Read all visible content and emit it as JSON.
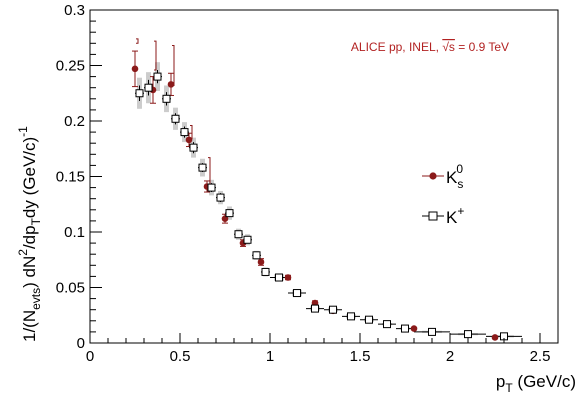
{
  "chart_data": {
    "type": "scatter",
    "annotation": {
      "prefix": "ALICE pp, INEL, ",
      "sqrt": "√s",
      "suffix": " = 0.9 TeV"
    },
    "xlabel": {
      "main": "p",
      "sub": "T",
      "rest": " (GeV/c)"
    },
    "ylabel": {
      "parts": [
        {
          "t": "1/(N",
          "s": "n"
        },
        {
          "t": "evts",
          "s": "sub"
        },
        {
          "t": ") dN",
          "s": "n"
        },
        {
          "t": "2",
          "s": "sup"
        },
        {
          "t": "/dp",
          "s": "n"
        },
        {
          "t": "T",
          "s": "sub"
        },
        {
          "t": "dy (GeV/c)",
          "s": "n"
        },
        {
          "t": "-1",
          "s": "sup"
        }
      ]
    },
    "xlim": [
      0,
      2.6
    ],
    "ylim": [
      0,
      0.3
    ],
    "x_ticks": [
      0,
      0.5,
      1,
      1.5,
      2,
      2.5
    ],
    "x_tick_labels": [
      "0",
      "0.5",
      "1",
      "1.5",
      "2",
      "2.5"
    ],
    "y_ticks": [
      0,
      0.05,
      0.1,
      0.15,
      0.2,
      0.25,
      0.3
    ],
    "y_tick_labels": [
      "0",
      "0.05",
      "0.1",
      "0.15",
      "0.2",
      "0.25",
      "0.3"
    ],
    "grid": false,
    "legend_position": "right",
    "series": [
      {
        "name": "K0s",
        "label_main": "K",
        "label_sub": "s",
        "label_sup": "0",
        "marker": "filled-circle",
        "color": "#8b1a1a",
        "x": [
          0.25,
          0.35,
          0.45,
          0.55,
          0.65,
          0.75,
          0.85,
          0.95,
          1.1,
          1.25,
          1.35,
          1.55,
          1.8,
          2.25
        ],
        "y": [
          0.247,
          0.228,
          0.233,
          0.183,
          0.141,
          0.112,
          0.09,
          0.073,
          0.059,
          0.036,
          0.029,
          0.021,
          0.013,
          0.005
        ],
        "err": [
          0.016,
          0.012,
          0.01,
          0.006,
          0.005,
          0.004,
          0.003,
          0.003,
          0.002,
          0.002,
          0.002,
          0.001,
          0.001,
          0.001
        ],
        "syst_x": [
          0.25,
          0.35,
          0.45,
          0.55,
          0.65
        ],
        "syst_y": [
          0.272,
          0.259,
          0.25,
          0.19,
          0.155
        ],
        "syst_err": [
          0.002,
          0.013,
          0.018,
          0.006,
          0.012
        ]
      },
      {
        "name": "K+",
        "label_main": "K",
        "label_sub": "",
        "label_sup": "+",
        "marker": "open-square",
        "color": "#000000",
        "x": [
          0.275,
          0.325,
          0.375,
          0.425,
          0.475,
          0.525,
          0.575,
          0.625,
          0.675,
          0.725,
          0.775,
          0.825,
          0.875,
          0.925,
          0.975,
          1.05,
          1.15,
          1.25,
          1.35,
          1.45,
          1.55,
          1.65,
          1.75,
          1.9,
          2.1,
          2.3
        ],
        "y": [
          0.225,
          0.23,
          0.24,
          0.22,
          0.202,
          0.19,
          0.176,
          0.158,
          0.14,
          0.131,
          0.117,
          0.098,
          0.093,
          0.079,
          0.064,
          0.059,
          0.045,
          0.031,
          0.03,
          0.024,
          0.021,
          0.017,
          0.013,
          0.01,
          0.008,
          0.006
        ],
        "err": [
          0.007,
          0.007,
          0.006,
          0.006,
          0.005,
          0.005,
          0.005,
          0.004,
          0.004,
          0.004,
          0.003,
          0.003,
          0.003,
          0.003,
          0.002,
          0.002,
          0.002,
          0.002,
          0.002,
          0.001,
          0.001,
          0.001,
          0.001,
          0.001,
          0.001,
          0.001
        ],
        "syst": [
          0.014,
          0.014,
          0.013,
          0.012,
          0.01,
          0.009,
          0.009,
          0.008,
          0.007,
          0.006,
          0.006,
          0.005,
          0.005,
          0.004,
          0.004,
          0.003,
          0.003,
          0.002,
          0.002,
          0.002,
          0.002,
          0.001,
          0.001,
          0.001,
          0.001,
          0.001
        ],
        "bin_halfwidth": [
          0.025,
          0.025,
          0.025,
          0.025,
          0.025,
          0.025,
          0.025,
          0.025,
          0.025,
          0.025,
          0.025,
          0.025,
          0.025,
          0.025,
          0.025,
          0.05,
          0.05,
          0.05,
          0.05,
          0.05,
          0.05,
          0.05,
          0.05,
          0.1,
          0.1,
          0.1
        ]
      }
    ]
  }
}
